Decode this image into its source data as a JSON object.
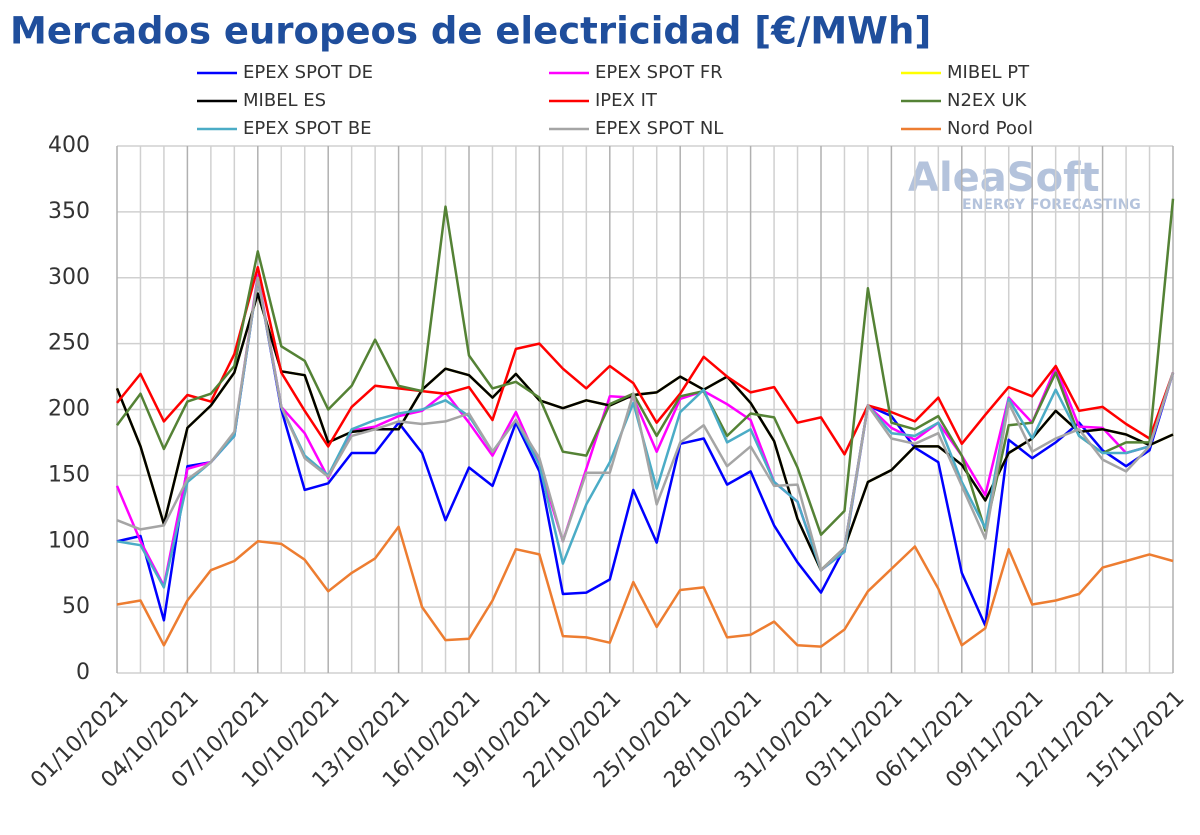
{
  "chart_data": {
    "type": "line",
    "title": "Mercados europeos de electricidad [€/MWh]",
    "watermark": "AleaSoft",
    "watermark_subtitle": "ENERGY FORECASTING",
    "categories": [
      "01/10/2021",
      null,
      null,
      "04/10/2021",
      null,
      null,
      "07/10/2021",
      null,
      null,
      "10/10/2021",
      null,
      null,
      "13/10/2021",
      null,
      null,
      "16/10/2021",
      null,
      null,
      "19/10/2021",
      null,
      null,
      "22/10/2021",
      null,
      null,
      "25/10/2021",
      null,
      null,
      "28/10/2021",
      null,
      null,
      "31/10/2021",
      null,
      null,
      "03/11/2021",
      null,
      null,
      "06/11/2021",
      null,
      null,
      "09/11/2021",
      null,
      null,
      "12/11/2021",
      null,
      null,
      "15/11/2021"
    ],
    "ylim": [
      0,
      400
    ],
    "yticks": [
      0,
      50,
      100,
      150,
      200,
      250,
      300,
      350,
      400
    ],
    "grid": true,
    "series": [
      {
        "name": "EPEX SPOT DE",
        "color": "#0000ff",
        "values": [
          100,
          104,
          40,
          157,
          160,
          180,
          300,
          200,
          139,
          144,
          167,
          167,
          190,
          167,
          116,
          156,
          142,
          190,
          153,
          60,
          61,
          71,
          139,
          99,
          174,
          178,
          143,
          153,
          112,
          84,
          61,
          95,
          203,
          195,
          171,
          160,
          76,
          36,
          177,
          163,
          175,
          190,
          169,
          157,
          169,
          228
        ]
      },
      {
        "name": "EPEX SPOT FR",
        "color": "#ff00ff",
        "values": [
          142,
          100,
          66,
          155,
          160,
          181,
          302,
          202,
          182,
          148,
          184,
          187,
          195,
          199,
          213,
          190,
          165,
          198,
          158,
          100,
          155,
          210,
          209,
          168,
          208,
          214,
          204,
          192,
          145,
          130,
          78,
          92,
          203,
          186,
          177,
          190,
          165,
          135,
          209,
          190,
          232,
          187,
          186,
          167,
          172,
          228
        ]
      },
      {
        "name": "MIBEL PT",
        "color": "#ffff00",
        "values": [
          216,
          172,
          113,
          186,
          203,
          228,
          288,
          229,
          226,
          175,
          183,
          185,
          185,
          215,
          231,
          226,
          209,
          227,
          207,
          201,
          207,
          203,
          211,
          213,
          225,
          215,
          225,
          205,
          176,
          117,
          78,
          95,
          145,
          154,
          172,
          172,
          158,
          131,
          167,
          178,
          199,
          183,
          185,
          181,
          173,
          181
        ]
      },
      {
        "name": "MIBEL ES",
        "color": "#000000",
        "values": [
          216,
          172,
          113,
          186,
          203,
          228,
          288,
          229,
          226,
          175,
          183,
          185,
          185,
          215,
          231,
          226,
          209,
          227,
          207,
          201,
          207,
          203,
          211,
          213,
          225,
          215,
          225,
          205,
          176,
          117,
          78,
          95,
          145,
          154,
          172,
          172,
          158,
          131,
          167,
          178,
          199,
          183,
          185,
          181,
          173,
          181
        ]
      },
      {
        "name": "IPEX IT",
        "color": "#ff0000",
        "values": [
          205,
          227,
          191,
          211,
          206,
          242,
          308,
          228,
          199,
          172,
          202,
          218,
          216,
          214,
          212,
          217,
          192,
          246,
          250,
          231,
          216,
          233,
          220,
          190,
          212,
          240,
          225,
          213,
          217,
          190,
          194,
          166,
          203,
          198,
          191,
          209,
          174,
          196,
          217,
          210,
          233,
          199,
          202,
          189,
          178,
          228
        ]
      },
      {
        "name": "N2EX UK",
        "color": "#548235",
        "values": [
          188,
          212,
          170,
          206,
          212,
          233,
          320,
          248,
          237,
          200,
          218,
          253,
          218,
          214,
          354,
          241,
          216,
          221,
          209,
          168,
          165,
          204,
          212,
          180,
          210,
          214,
          180,
          197,
          194,
          156,
          105,
          123,
          292,
          190,
          185,
          195,
          165,
          108,
          188,
          190,
          228,
          180,
          167,
          175,
          175,
          360
        ]
      },
      {
        "name": "EPEX SPOT BE",
        "color": "#4bacc6",
        "values": [
          100,
          97,
          65,
          145,
          160,
          180,
          300,
          202,
          165,
          150,
          185,
          192,
          197,
          200,
          207,
          195,
          168,
          192,
          158,
          83,
          128,
          160,
          205,
          140,
          198,
          215,
          175,
          185,
          145,
          130,
          78,
          92,
          203,
          182,
          180,
          190,
          145,
          110,
          208,
          178,
          215,
          180,
          167,
          167,
          172,
          228
        ]
      },
      {
        "name": "EPEX SPOT NL",
        "color": "#a5a5a5",
        "values": [
          116,
          109,
          112,
          147,
          160,
          183,
          300,
          202,
          163,
          149,
          180,
          185,
          191,
          189,
          191,
          197,
          168,
          192,
          163,
          100,
          152,
          152,
          212,
          128,
          175,
          188,
          157,
          172,
          142,
          143,
          78,
          95,
          203,
          178,
          174,
          182,
          142,
          102,
          205,
          168,
          178,
          185,
          162,
          153,
          172,
          228
        ]
      },
      {
        "name": "Nord Pool",
        "color": "#ed7d31",
        "values": [
          52,
          55,
          21,
          55,
          78,
          85,
          100,
          98,
          86,
          62,
          76,
          87,
          111,
          50,
          25,
          26,
          55,
          94,
          90,
          28,
          27,
          23,
          69,
          35,
          63,
          65,
          27,
          29,
          39,
          21,
          20,
          33,
          62,
          79,
          96,
          64,
          21,
          34,
          94,
          52,
          55,
          60,
          80,
          85,
          90,
          85
        ]
      }
    ]
  }
}
